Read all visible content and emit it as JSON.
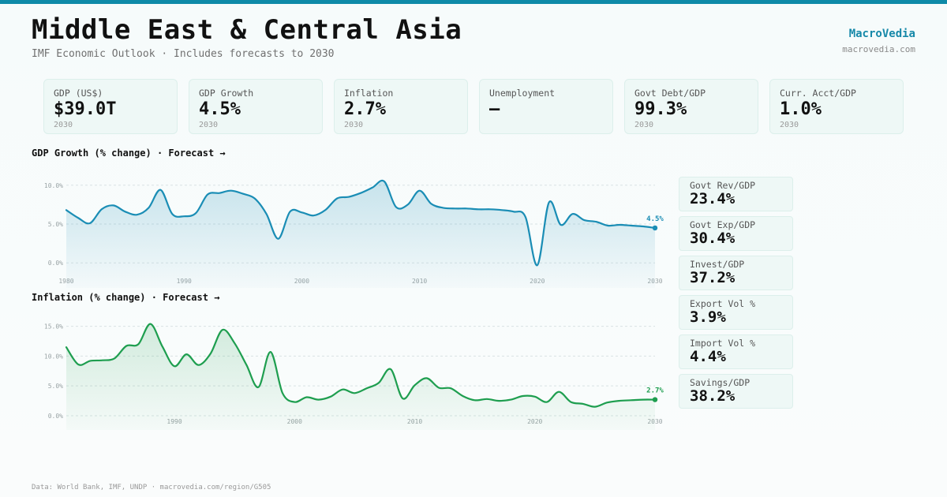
{
  "header": {
    "title": "Middle East & Central Asia",
    "subtitle": "IMF Economic Outlook · Includes forecasts to 2030",
    "brand": "MacroVedia",
    "brand_url": "macrovedia.com"
  },
  "kpis": [
    {
      "label": "GDP (US$)",
      "value": "$39.0T",
      "year": "2030"
    },
    {
      "label": "GDP Growth",
      "value": "4.5%",
      "year": "2030"
    },
    {
      "label": "Inflation",
      "value": "2.7%",
      "year": "2030"
    },
    {
      "label": "Unemployment",
      "value": "—",
      "year": ""
    },
    {
      "label": "Govt Debt/GDP",
      "value": "99.3%",
      "year": "2030"
    },
    {
      "label": "Curr. Acct/GDP",
      "value": "1.0%",
      "year": "2030"
    }
  ],
  "side_stats": [
    {
      "label": "Govt Rev/GDP",
      "value": "23.4%"
    },
    {
      "label": "Govt Exp/GDP",
      "value": "30.4%"
    },
    {
      "label": "Invest/GDP",
      "value": "37.2%"
    },
    {
      "label": "Export Vol %",
      "value": "3.9%"
    },
    {
      "label": "Import Vol %",
      "value": "4.4%"
    },
    {
      "label": "Savings/GDP",
      "value": "38.2%"
    }
  ],
  "footer": "Data: World Bank, IMF, UNDP · macrovedia.com/region/G505",
  "colors": {
    "gdp": "#1a8db5",
    "inflation": "#1e9e4f",
    "accent": "#0e8aa8"
  },
  "chart_data": [
    {
      "type": "area",
      "title": "GDP Growth (% change) · Forecast →",
      "x": [
        1980,
        1981,
        1982,
        1983,
        1984,
        1985,
        1986,
        1987,
        1988,
        1989,
        1990,
        1991,
        1992,
        1993,
        1994,
        1995,
        1996,
        1997,
        1998,
        1999,
        2000,
        2001,
        2002,
        2003,
        2004,
        2005,
        2006,
        2007,
        2008,
        2009,
        2010,
        2011,
        2012,
        2013,
        2014,
        2015,
        2016,
        2017,
        2018,
        2019,
        2020,
        2021,
        2022,
        2023,
        2024,
        2025,
        2026,
        2027,
        2028,
        2029,
        2030
      ],
      "y": [
        6.8,
        5.8,
        5.1,
        6.9,
        7.4,
        6.6,
        6.2,
        7.1,
        9.4,
        6.3,
        6.0,
        6.4,
        8.8,
        9.0,
        9.3,
        8.9,
        8.3,
        6.3,
        3.1,
        6.6,
        6.5,
        6.1,
        6.8,
        8.3,
        8.5,
        9.0,
        9.7,
        10.5,
        7.2,
        7.5,
        9.3,
        7.6,
        7.1,
        7.0,
        7.0,
        6.9,
        6.9,
        6.8,
        6.6,
        5.9,
        -0.3,
        7.8,
        4.9,
        6.3,
        5.5,
        5.3,
        4.8,
        4.9,
        4.8,
        4.7,
        4.5
      ],
      "ylim": [
        -1.5,
        11.2
      ],
      "yticks": [
        "0.0%",
        "5.0%",
        "10.0%"
      ],
      "ytick_values": [
        0,
        5,
        10
      ],
      "xticks": [
        "1980",
        "1990",
        "2000",
        "2010",
        "2020",
        "2030"
      ],
      "xtick_values": [
        1980,
        1990,
        2000,
        2010,
        2020,
        2030
      ],
      "last_label": "4.5%",
      "grid": true
    },
    {
      "type": "area",
      "title": "Inflation (% change) · Forecast →",
      "x": [
        1981,
        1982,
        1983,
        1984,
        1985,
        1986,
        1987,
        1988,
        1989,
        1990,
        1991,
        1992,
        1993,
        1994,
        1995,
        1996,
        1997,
        1998,
        1999,
        2000,
        2001,
        2002,
        2003,
        2004,
        2005,
        2006,
        2007,
        2008,
        2009,
        2010,
        2011,
        2012,
        2013,
        2014,
        2015,
        2016,
        2017,
        2018,
        2019,
        2020,
        2021,
        2022,
        2023,
        2024,
        2025,
        2026,
        2027,
        2028,
        2029,
        2030
      ],
      "y": [
        11.5,
        8.6,
        9.2,
        9.3,
        9.6,
        11.7,
        12.0,
        15.4,
        11.6,
        8.3,
        10.3,
        8.5,
        10.4,
        14.4,
        12.2,
        8.5,
        4.8,
        10.7,
        3.8,
        2.3,
        3.1,
        2.7,
        3.2,
        4.4,
        3.8,
        4.6,
        5.5,
        7.8,
        2.9,
        5.1,
        6.3,
        4.7,
        4.6,
        3.3,
        2.6,
        2.8,
        2.5,
        2.7,
        3.3,
        3.2,
        2.3,
        4.0,
        2.3,
        2.0,
        1.5,
        2.2,
        2.5,
        2.6,
        2.7,
        2.7
      ],
      "ylim": [
        -0.4,
        16.8
      ],
      "yticks": [
        "0.0%",
        "5.0%",
        "10.0%",
        "15.0%"
      ],
      "ytick_values": [
        0,
        5,
        10,
        15
      ],
      "xticks": [
        "1990",
        "2000",
        "2010",
        "2020",
        "2030"
      ],
      "xtick_values": [
        1990,
        2000,
        2010,
        2020,
        2030
      ],
      "last_label": "2.7%",
      "grid": true
    }
  ]
}
